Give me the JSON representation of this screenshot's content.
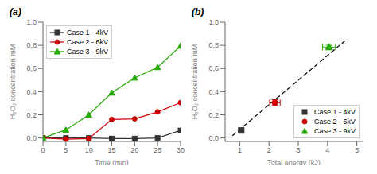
{
  "chart_data": [
    {
      "type": "line",
      "title": "(a)",
      "xlabel": "Time (min)",
      "ylabel": "H₂O₂ concentration mM",
      "xlim": [
        0,
        30
      ],
      "ylim": [
        -0.03,
        1.0
      ],
      "xticks": [
        0,
        5,
        10,
        15,
        20,
        25,
        30
      ],
      "yticks": [
        {
          "value": 0.0,
          "label": "0,0"
        },
        {
          "value": 0.2,
          "label": "0,2"
        },
        {
          "value": 0.4,
          "label": "0,4"
        },
        {
          "value": 0.6,
          "label": "0,6"
        },
        {
          "value": 0.8,
          "label": "0,8"
        },
        {
          "value": 1.0,
          "label": "1,0"
        }
      ],
      "grid": false,
      "legend": "upper left",
      "x": [
        0,
        5,
        10,
        15,
        20,
        25,
        30
      ],
      "series": [
        {
          "name": "Case 1 - 4kV",
          "color": "#333333",
          "marker": "square",
          "values": [
            0.0,
            0.0,
            0.0,
            -0.005,
            -0.005,
            0.0,
            0.065
          ]
        },
        {
          "name": "Case 2 - 6kV",
          "color": "#cc0000",
          "marker": "circle",
          "values": [
            0.0,
            -0.01,
            -0.005,
            0.16,
            0.165,
            0.225,
            0.305
          ]
        },
        {
          "name": "Case 3 - 9kV",
          "color": "#22aa00",
          "marker": "triangle",
          "values": [
            0.0,
            0.07,
            0.2,
            0.39,
            0.52,
            0.61,
            0.795
          ]
        }
      ]
    },
    {
      "type": "scatter",
      "title": "(b)",
      "xlabel": "Total energy (kJ)",
      "ylabel": "H₂O₂ concentration mM",
      "xlim": [
        0.5,
        5.2
      ],
      "ylim": [
        -0.03,
        1.0
      ],
      "xticks": [
        1,
        2,
        3,
        4,
        5
      ],
      "yticks": [
        {
          "value": 0.0,
          "label": "0,0"
        },
        {
          "value": 0.2,
          "label": "0,2"
        },
        {
          "value": 0.4,
          "label": "0,4"
        },
        {
          "value": 0.6,
          "label": "0,6"
        },
        {
          "value": 0.8,
          "label": "0,8"
        },
        {
          "value": 1.0,
          "label": "1,0"
        }
      ],
      "grid": false,
      "legend": "lower right",
      "series": [
        {
          "type": "line",
          "color": "#000000",
          "line_style": "dashed",
          "x": [
            0.75,
            4.6
          ],
          "values": [
            0.02,
            0.84
          ]
        },
        {
          "name": "Case 1 - 4kV",
          "color": "#333333",
          "marker": "square",
          "x": [
            1.05
          ],
          "values": [
            0.065
          ],
          "xerr": [
            0.06
          ],
          "yerr": [
            0.01
          ]
        },
        {
          "name": "Case 2 - 6kV",
          "color": "#cc0000",
          "marker": "circle",
          "x": [
            2.2
          ],
          "values": [
            0.305
          ],
          "xerr": [
            0.18
          ],
          "yerr": [
            0.025
          ]
        },
        {
          "name": "Case 3 - 9kV",
          "color": "#22aa00",
          "marker": "triangle",
          "x": [
            4.05
          ],
          "values": [
            0.785
          ],
          "xerr": [
            0.22
          ],
          "yerr": [
            0.015
          ]
        }
      ]
    }
  ]
}
